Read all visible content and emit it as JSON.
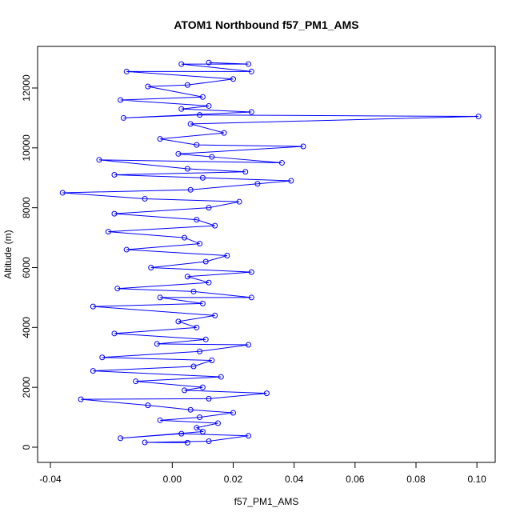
{
  "chart_data": {
    "type": "line",
    "title": "ATOM1 Northbound f57_PM1_AMS",
    "x_label": "f57_PM1_AMS",
    "y_label": "Altitude (m)",
    "x": [
      0.005,
      -0.009,
      0.012,
      0.025,
      0.003,
      -0.017,
      0.01,
      0.008,
      0.015,
      -0.004,
      0.009,
      0.02,
      0.006,
      -0.008,
      -0.03,
      0.012,
      0.031,
      0.004,
      0.01,
      -0.012,
      0.016,
      -0.026,
      0.007,
      0.013,
      -0.023,
      0.009,
      0.025,
      -0.005,
      0.011,
      -0.019,
      0.008,
      0.002,
      0.014,
      -0.026,
      0.01,
      -0.004,
      0.026,
      0.007,
      -0.018,
      0.012,
      0.005,
      0.026,
      -0.007,
      0.011,
      0.018,
      -0.015,
      0.009,
      0.004,
      -0.021,
      0.014,
      0.008,
      -0.019,
      0.012,
      0.022,
      -0.009,
      -0.036,
      0.006,
      0.028,
      0.039,
      0.01,
      -0.019,
      0.024,
      0.005,
      -0.024,
      0.036,
      0.013,
      0.002,
      0.043,
      0.008,
      -0.004,
      0.017,
      0.006,
      0.1005,
      0.009,
      -0.016,
      0.026,
      0.003,
      0.012,
      -0.017,
      0.01,
      -0.008,
      0.005,
      0.02,
      -0.015,
      0.026,
      0.003,
      0.025,
      0.012
    ],
    "series": [
      {
        "name": "f57_PM1_AMS",
        "color": "#0000ff",
        "values": [
          150,
          160,
          200,
          380,
          450,
          300,
          520,
          650,
          800,
          900,
          1000,
          1150,
          1250,
          1400,
          1600,
          1620,
          1800,
          1900,
          2000,
          2200,
          2350,
          2550,
          2700,
          2900,
          3000,
          3200,
          3420,
          3450,
          3600,
          3800,
          4000,
          4200,
          4400,
          4700,
          4800,
          5000,
          5000,
          5200,
          5300,
          5500,
          5700,
          5850,
          6000,
          6200,
          6400,
          6600,
          6800,
          7000,
          7200,
          7400,
          7600,
          7800,
          8000,
          8200,
          8300,
          8500,
          8600,
          8800,
          8900,
          9000,
          9100,
          9200,
          9300,
          9600,
          9500,
          9700,
          9800,
          10050,
          10100,
          10300,
          10500,
          10800,
          11050,
          11100,
          11000,
          11200,
          11300,
          11400,
          11600,
          11700,
          12050,
          12100,
          12300,
          12550,
          12550,
          12800,
          12800,
          12850
        ]
      }
    ],
    "xlim": [
      -0.0442,
      0.106
    ],
    "ylim": [
      -508,
      13390
    ],
    "xticks": [
      -0.04,
      {
        "value": 0,
        "label": "0.00"
      },
      0.02,
      0.04,
      0.06,
      0.08,
      {
        "value": 0.1,
        "label": "0.10"
      }
    ],
    "yticks": [
      0,
      2000,
      4000,
      6000,
      8000,
      10000,
      12000
    ]
  }
}
